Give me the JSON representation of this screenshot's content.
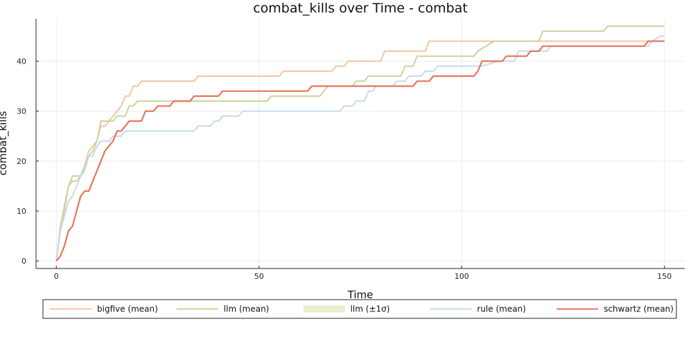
{
  "chart_data": {
    "type": "line",
    "title": "combat_kills over Time - combat",
    "xlabel": "Time",
    "ylabel": "combat_kills",
    "xlim": [
      -5,
      155
    ],
    "ylim": [
      -1.5,
      48.5
    ],
    "xticks": [
      0,
      50,
      100,
      150
    ],
    "yticks": [
      0,
      10,
      20,
      30,
      40
    ],
    "grid": true,
    "legend_placement": "bottom",
    "series": [
      {
        "name": "bigfive (mean)",
        "color": "#f4c59f",
        "points": [
          [
            0,
            0
          ],
          [
            1,
            7
          ],
          [
            2,
            10
          ],
          [
            3,
            15
          ],
          [
            4,
            16
          ],
          [
            5,
            16
          ],
          [
            6,
            17
          ],
          [
            7,
            19
          ],
          [
            8,
            22
          ],
          [
            9,
            23
          ],
          [
            10,
            24
          ],
          [
            11,
            27
          ],
          [
            12,
            27
          ],
          [
            13,
            28
          ],
          [
            14,
            29
          ],
          [
            15,
            30
          ],
          [
            16,
            31
          ],
          [
            17,
            33
          ],
          [
            18,
            33
          ],
          [
            19,
            35
          ],
          [
            20,
            35
          ],
          [
            21,
            36
          ],
          [
            34,
            36
          ],
          [
            35,
            37
          ],
          [
            55,
            37
          ],
          [
            56,
            38
          ],
          [
            68,
            38
          ],
          [
            69,
            39
          ],
          [
            71,
            39
          ],
          [
            72,
            40
          ],
          [
            80,
            40
          ],
          [
            81,
            42
          ],
          [
            91,
            42
          ],
          [
            92,
            44
          ],
          [
            150,
            44
          ]
        ]
      },
      {
        "name": "llm (mean)",
        "color": "#c8d59a",
        "points": [
          [
            0,
            0
          ],
          [
            1,
            7
          ],
          [
            2,
            11
          ],
          [
            3,
            15
          ],
          [
            4,
            17
          ],
          [
            6,
            17
          ],
          [
            7,
            19
          ],
          [
            8,
            21
          ],
          [
            9,
            22
          ],
          [
            10,
            24
          ],
          [
            11,
            28
          ],
          [
            13,
            28
          ],
          [
            14,
            28
          ],
          [
            15,
            29
          ],
          [
            17,
            29
          ],
          [
            18,
            31
          ],
          [
            19,
            31
          ],
          [
            20,
            32
          ],
          [
            31,
            32
          ],
          [
            32,
            32
          ],
          [
            52,
            32
          ],
          [
            53,
            33
          ],
          [
            65,
            33
          ],
          [
            66,
            34
          ],
          [
            67,
            35
          ],
          [
            73,
            35
          ],
          [
            74,
            36
          ],
          [
            76,
            36
          ],
          [
            77,
            37
          ],
          [
            82,
            37
          ],
          [
            83,
            37
          ],
          [
            85,
            37
          ],
          [
            86,
            39
          ],
          [
            88,
            39
          ],
          [
            89,
            41
          ],
          [
            103,
            41
          ],
          [
            104,
            42
          ],
          [
            108,
            44
          ],
          [
            119,
            44
          ],
          [
            120,
            46
          ],
          [
            135,
            46
          ],
          [
            136,
            47
          ],
          [
            150,
            47
          ]
        ]
      },
      {
        "name": "rule (mean)",
        "color": "#c6d9ec",
        "points": [
          [
            0,
            0
          ],
          [
            1,
            6
          ],
          [
            2,
            9
          ],
          [
            3,
            12
          ],
          [
            4,
            13
          ],
          [
            5,
            15
          ],
          [
            6,
            17
          ],
          [
            7,
            18
          ],
          [
            8,
            21
          ],
          [
            9,
            21
          ],
          [
            10,
            23
          ],
          [
            11,
            24
          ],
          [
            13,
            24
          ],
          [
            14,
            25
          ],
          [
            16,
            25
          ],
          [
            17,
            26
          ],
          [
            34,
            26
          ],
          [
            35,
            27
          ],
          [
            38,
            27
          ],
          [
            39,
            28
          ],
          [
            40,
            28
          ],
          [
            41,
            29
          ],
          [
            45,
            29
          ],
          [
            46,
            30
          ],
          [
            70,
            30
          ],
          [
            71,
            31
          ],
          [
            73,
            31
          ],
          [
            74,
            32
          ],
          [
            76,
            32
          ],
          [
            77,
            34
          ],
          [
            78,
            34
          ],
          [
            79,
            35
          ],
          [
            83,
            35
          ],
          [
            84,
            36
          ],
          [
            86,
            36
          ],
          [
            87,
            37
          ],
          [
            90,
            37
          ],
          [
            91,
            38
          ],
          [
            93,
            38
          ],
          [
            94,
            39
          ],
          [
            104,
            39
          ],
          [
            105,
            39
          ],
          [
            109,
            40
          ],
          [
            113,
            40
          ],
          [
            114,
            42
          ],
          [
            121,
            42
          ],
          [
            122,
            43
          ],
          [
            146,
            43
          ],
          [
            147,
            44
          ],
          [
            149,
            45
          ],
          [
            150,
            45
          ]
        ]
      },
      {
        "name": "schwartz (mean)",
        "color": "#e8735a",
        "points": [
          [
            0,
            0
          ],
          [
            1,
            1
          ],
          [
            2,
            3
          ],
          [
            3,
            6
          ],
          [
            4,
            7
          ],
          [
            5,
            10
          ],
          [
            6,
            13
          ],
          [
            7,
            14
          ],
          [
            8,
            14
          ],
          [
            12,
            22
          ],
          [
            13,
            23
          ],
          [
            14,
            24
          ],
          [
            15,
            26
          ],
          [
            16,
            26
          ],
          [
            17,
            27
          ],
          [
            18,
            28
          ],
          [
            21,
            28
          ],
          [
            22,
            30
          ],
          [
            24,
            30
          ],
          [
            25,
            31
          ],
          [
            28,
            31
          ],
          [
            29,
            32
          ],
          [
            33,
            32
          ],
          [
            34,
            33
          ],
          [
            40,
            33
          ],
          [
            41,
            34
          ],
          [
            62,
            34
          ],
          [
            63,
            35
          ],
          [
            88,
            35
          ],
          [
            89,
            36
          ],
          [
            92,
            36
          ],
          [
            93,
            37
          ],
          [
            103,
            37
          ],
          [
            104,
            38
          ],
          [
            105,
            40
          ],
          [
            110,
            40
          ],
          [
            111,
            41
          ],
          [
            116,
            41
          ],
          [
            117,
            42
          ],
          [
            119,
            42
          ],
          [
            120,
            43
          ],
          [
            145,
            43
          ],
          [
            146,
            44
          ],
          [
            150,
            44
          ]
        ]
      }
    ],
    "band": {
      "name": "llm (±1σ)",
      "color": "#e8efcd"
    },
    "legend": [
      "bigfive (mean)",
      "llm (mean)",
      "llm (±1σ)",
      "rule (mean)",
      "schwartz (mean)"
    ]
  }
}
